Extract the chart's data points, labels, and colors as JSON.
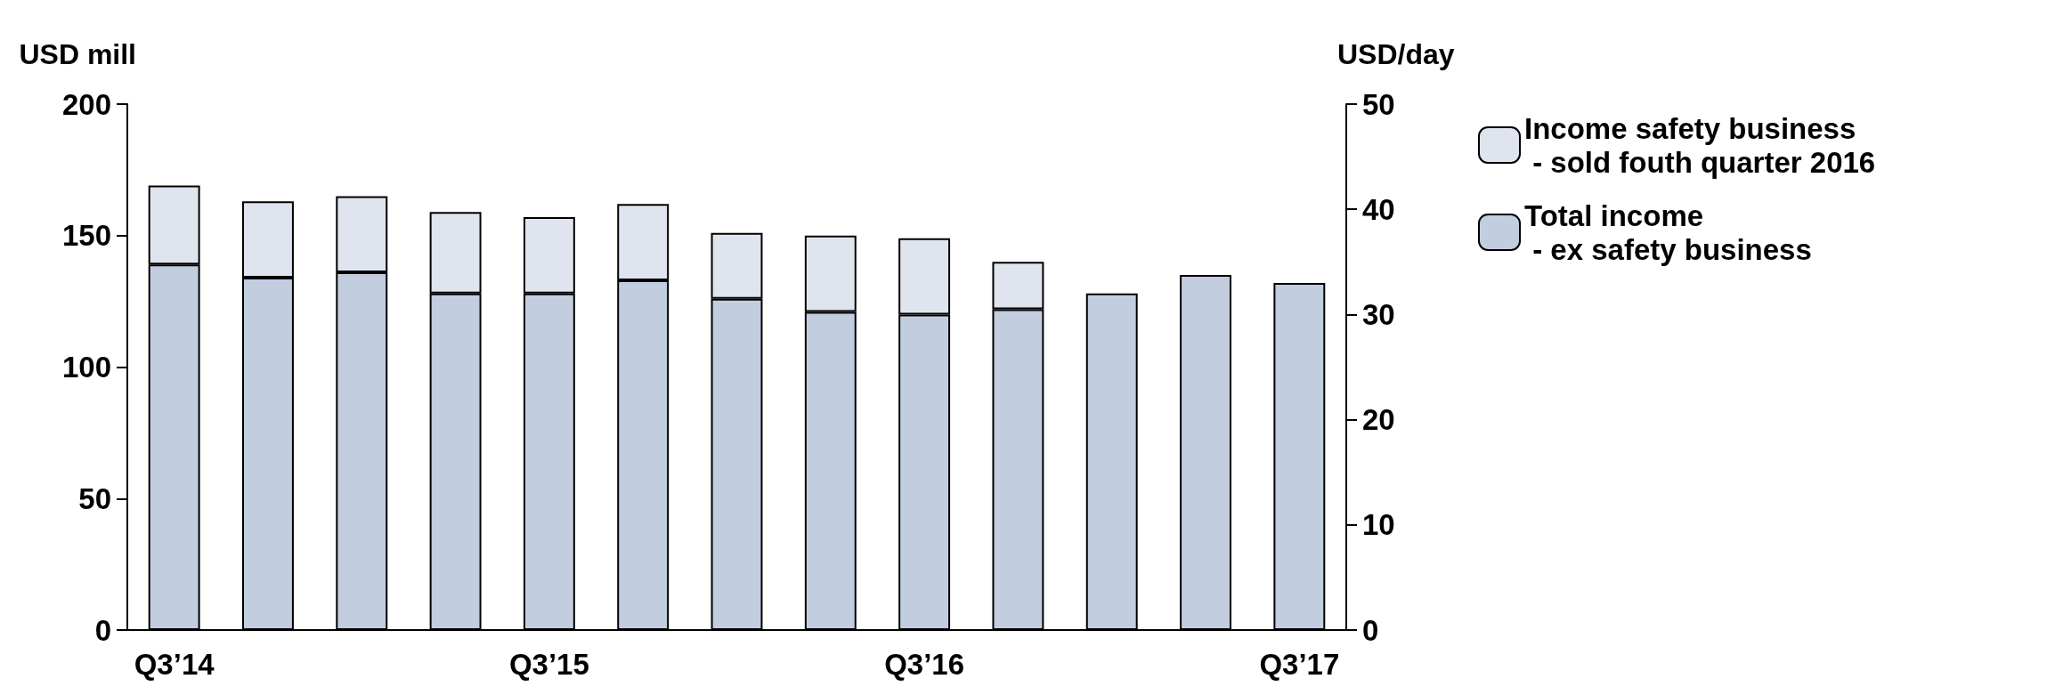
{
  "chart_data": {
    "type": "bar",
    "stacked": true,
    "categories": [
      "Q3’14",
      null,
      null,
      null,
      "Q3’15",
      null,
      null,
      null,
      "Q3’16",
      null,
      null,
      null,
      "Q3’17"
    ],
    "series": [
      {
        "name": "Total income\n - ex safety business",
        "color": "#c3cde0",
        "values": [
          139,
          134,
          136,
          128,
          128,
          133,
          126,
          121,
          120,
          122,
          128,
          135,
          132
        ]
      },
      {
        "name": "Income safety business\n - sold fouth quarter 2016",
        "color": "#dfe4ee",
        "values": [
          30,
          29,
          29,
          31,
          29,
          29,
          25,
          29,
          29,
          18,
          null,
          null,
          null
        ]
      }
    ],
    "ylabel": "USD mill",
    "y2label": "USD/day",
    "ylim": [
      0,
      200
    ],
    "yticks": [
      0,
      50,
      100,
      150,
      200
    ],
    "y2lim": [
      0,
      50
    ],
    "y2ticks": [
      0,
      10,
      20,
      30,
      40,
      50
    ],
    "grid": false,
    "legend": "right"
  }
}
